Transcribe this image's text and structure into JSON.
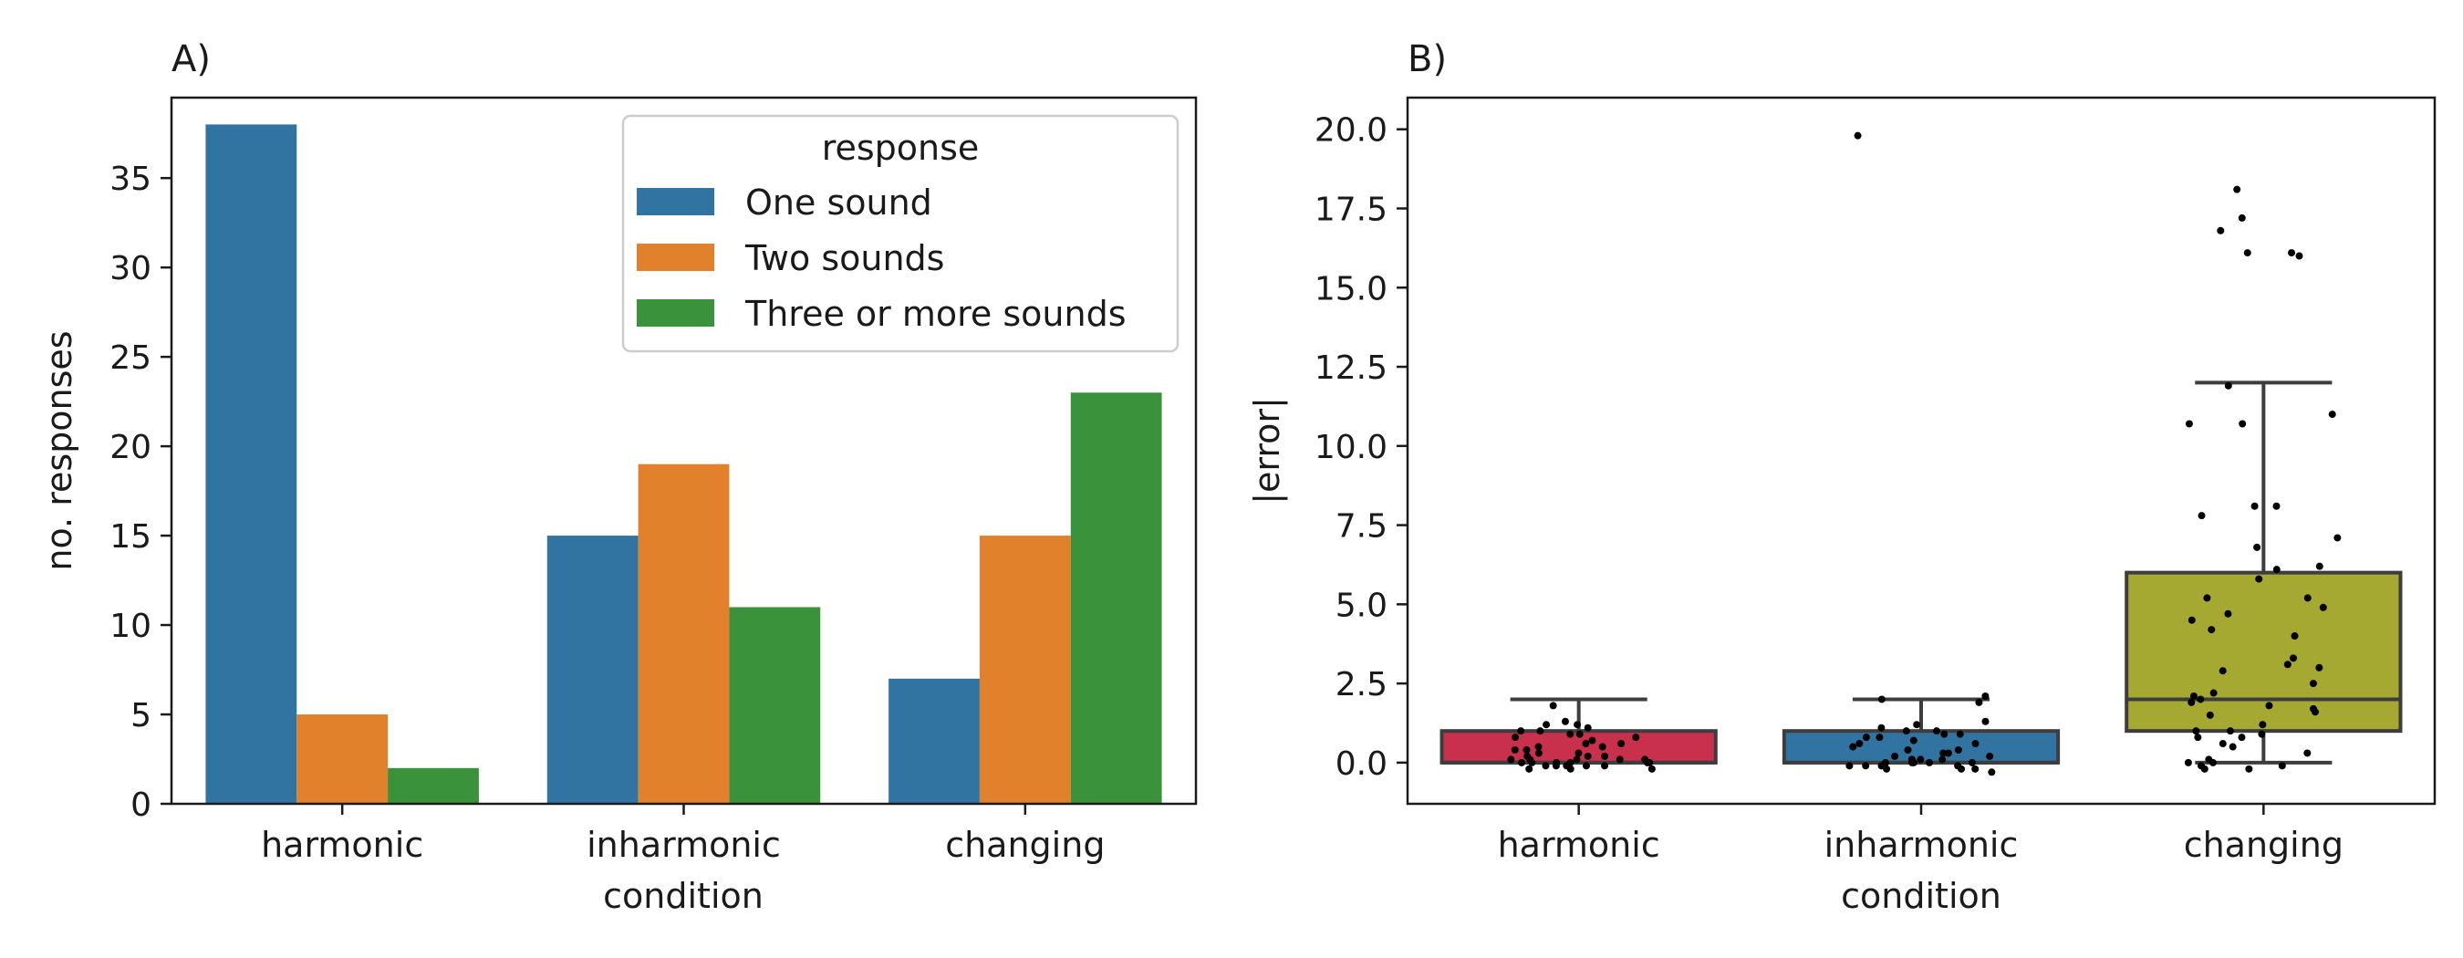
{
  "chart_data": [
    {
      "type": "bar",
      "panel_label": "A)",
      "xlabel": "condition",
      "ylabel": "no. responses",
      "categories": [
        "harmonic",
        "inharmonic",
        "changing"
      ],
      "ylim": [
        0,
        39.5
      ],
      "yticks": [
        0,
        5,
        10,
        15,
        20,
        25,
        30,
        35
      ],
      "legend": {
        "title": "response",
        "placement": "top-right"
      },
      "series": [
        {
          "name": "One sound",
          "color": "#3274a1",
          "values": [
            38,
            15,
            7
          ]
        },
        {
          "name": "Two sounds",
          "color": "#e1812c",
          "values": [
            5,
            19,
            15
          ]
        },
        {
          "name": "Three or more sounds",
          "color": "#3a923a",
          "values": [
            2,
            11,
            23
          ]
        }
      ]
    },
    {
      "type": "box",
      "panel_label": "B)",
      "xlabel": "condition",
      "ylabel": "|error|",
      "categories": [
        "harmonic",
        "inharmonic",
        "changing"
      ],
      "ylim": [
        -1.3,
        21.0
      ],
      "yticks": [
        "0.0",
        "2.5",
        "5.0",
        "7.5",
        "10.0",
        "12.5",
        "15.0",
        "17.5",
        "20.0"
      ],
      "box_colors": [
        "#c9304b",
        "#3274a1",
        "#a5a831"
      ],
      "boxes": [
        {
          "category": "harmonic",
          "whisker_low": 0,
          "q1": 0,
          "median": 0,
          "q3": 1,
          "whisker_high": 2
        },
        {
          "category": "inharmonic",
          "whisker_low": 0,
          "q1": 0,
          "median": 0,
          "q3": 1,
          "whisker_high": 2
        },
        {
          "category": "changing",
          "whisker_low": 0,
          "q1": 1,
          "median": 2,
          "q3": 6,
          "whisker_high": 12
        }
      ],
      "points": [
        {
          "category": "harmonic",
          "values": [
            1.2,
            1.1,
            1.0,
            1.0,
            0.9,
            0.9,
            0.8,
            0.8,
            0.7,
            1.3,
            1.2,
            0.6,
            0.5,
            0.4,
            0.3,
            0.3,
            0.2,
            0.2,
            0.2,
            0.1,
            0.1,
            0.1,
            0.1,
            0.0,
            0.0,
            0.0,
            0.0,
            0.0,
            -0.1,
            -0.1,
            -0.1,
            -0.1,
            -0.2,
            -0.2,
            -0.2,
            0.5,
            0.6,
            1.8,
            0.4,
            0.1,
            0.0,
            -0.1
          ]
        },
        {
          "category": "inharmonic",
          "values": [
            19.8,
            2.1,
            2.0,
            1.9,
            1.2,
            1.1,
            1.0,
            1.0,
            0.9,
            0.9,
            0.8,
            0.8,
            0.7,
            0.6,
            0.5,
            0.4,
            0.3,
            0.3,
            0.2,
            0.2,
            0.1,
            0.1,
            0.1,
            0.0,
            0.0,
            0.0,
            0.0,
            -0.1,
            -0.1,
            -0.1,
            -0.2,
            -0.2,
            -0.2,
            -0.3,
            1.3,
            0.6,
            0.4,
            0.1,
            0.0,
            -0.1
          ]
        },
        {
          "category": "changing",
          "values": [
            18.1,
            17.2,
            16.8,
            16.1,
            16.1,
            16.0,
            11.9,
            11.0,
            10.7,
            10.7,
            8.1,
            8.1,
            7.8,
            7.1,
            6.8,
            6.2,
            6.1,
            5.8,
            5.2,
            5.2,
            4.9,
            4.7,
            4.5,
            4.2,
            4.0,
            3.3,
            3.1,
            3.0,
            2.9,
            2.5,
            2.2,
            2.1,
            2.0,
            1.9,
            1.8,
            1.7,
            1.6,
            1.5,
            1.2,
            1.0,
            1.0,
            0.9,
            0.8,
            0.8,
            0.6,
            0.5,
            0.3,
            0.1,
            0.0,
            0.0,
            -0.1,
            -0.1,
            -0.2,
            -0.2
          ]
        }
      ]
    }
  ]
}
